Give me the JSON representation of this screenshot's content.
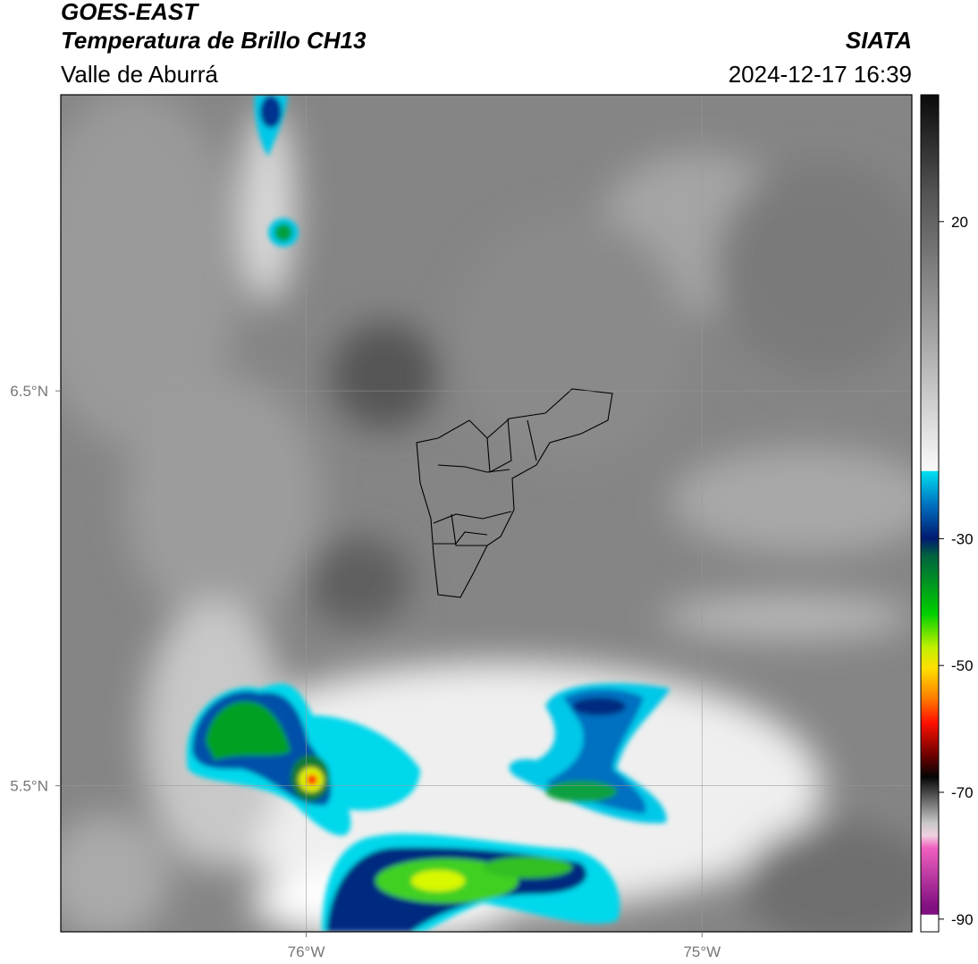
{
  "header": {
    "title": "GOES-EAST",
    "subtitle": "Temperatura de Brillo CH13",
    "region": "Valle de Aburrá",
    "source": "SIATA",
    "timestamp": "2024-12-17 16:39"
  },
  "map": {
    "xlim": [
      -76.62,
      -74.47
    ],
    "ylim": [
      5.13,
      7.25
    ],
    "xticks": [
      {
        "value": -76,
        "label": "76°W"
      },
      {
        "value": -75,
        "label": "75°W"
      }
    ],
    "yticks": [
      {
        "value": 6.5,
        "label": "6.5°N"
      },
      {
        "value": 5.5,
        "label": "5.5°N"
      }
    ],
    "grid": true
  },
  "colorbar": {
    "lim": [
      -92,
      40
    ],
    "ticks": [
      20,
      -30,
      -50,
      -70,
      -90
    ]
  }
}
